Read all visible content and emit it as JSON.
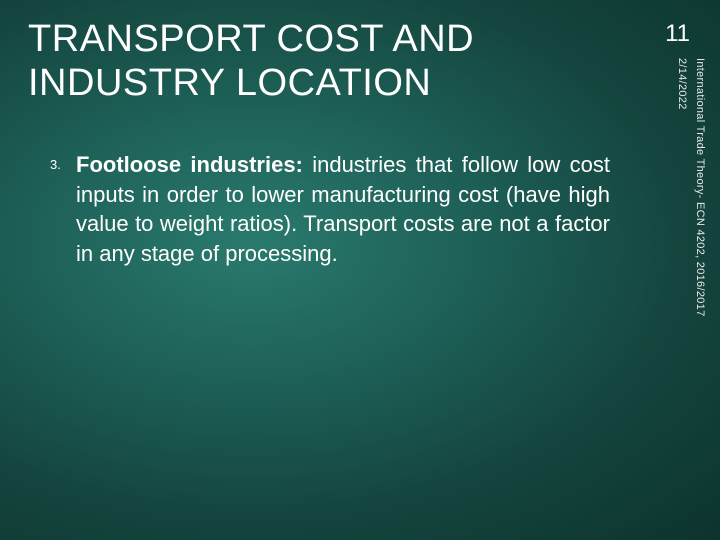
{
  "slide": {
    "title": "TRANSPORT COST AND INDUSTRY LOCATION",
    "number": "11"
  },
  "body": {
    "items": [
      {
        "num": "3.",
        "term": "Footloose industries:",
        "rest": " industries that follow low cost inputs in order to lower manufacturing cost (have high value to weight ratios). Transport costs are not a factor in any stage of processing."
      }
    ]
  },
  "sidebar": {
    "course": "International Trade Theory- ECN 4202, 2016/2017",
    "date": "2/14/2022"
  },
  "style": {
    "background_gradient": [
      "#2a7a6e",
      "#1d5f56",
      "#14453e",
      "#0d332e"
    ],
    "text_color": "#ffffff",
    "title_fontsize": 38,
    "body_fontsize": 22,
    "number_fontsize": 24,
    "sidebar_fontsize": 11
  }
}
